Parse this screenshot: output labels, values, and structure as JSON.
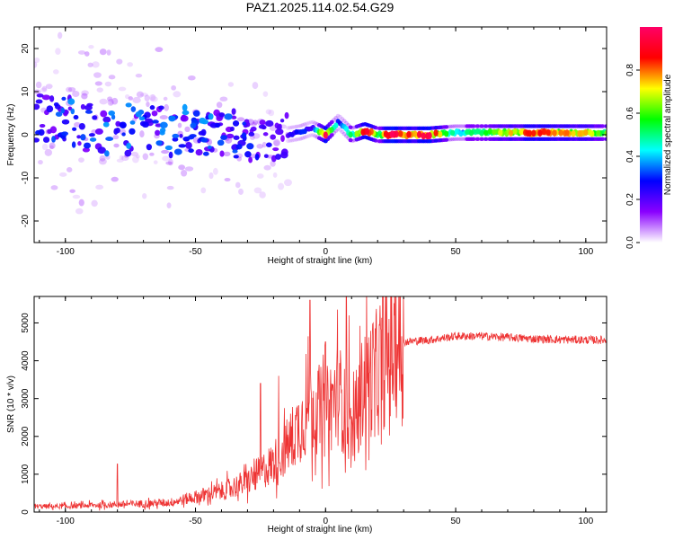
{
  "figure": {
    "title": "PAZ1.2025.114.02.54.G29"
  },
  "chart_data": [
    {
      "type": "heatmap",
      "xlabel": "Height of straight line (km)",
      "ylabel": "Frequency (Hz)",
      "xlim": [
        -112,
        108
      ],
      "ylim": [
        -25,
        25
      ],
      "xticks": [
        -100,
        -50,
        0,
        50,
        100
      ],
      "yticks": [
        -20,
        -10,
        0,
        10,
        20
      ],
      "colorbar": {
        "label": "Normalized spectral amplitude",
        "range": [
          0,
          1
        ],
        "ticks": [
          0.0,
          0.2,
          0.4,
          0.6,
          0.8
        ],
        "colors": [
          "#ffffff",
          "#8a00ff",
          "#0000ff",
          "#00ffff",
          "#00ff00",
          "#ffff00",
          "#ff0000",
          "#ff0066"
        ]
      },
      "ridge": [
        {
          "x": -110,
          "f": 4,
          "amp": 0.25
        },
        {
          "x": -100,
          "f": 3,
          "amp": 0.3
        },
        {
          "x": -90,
          "f": 2,
          "amp": 0.3
        },
        {
          "x": -80,
          "f": 1,
          "amp": 0.3
        },
        {
          "x": -70,
          "f": 2,
          "amp": 0.3
        },
        {
          "x": -60,
          "f": 1,
          "amp": 0.3
        },
        {
          "x": -50,
          "f": 0,
          "amp": 0.3
        },
        {
          "x": -40,
          "f": 0,
          "amp": 0.3
        },
        {
          "x": -30,
          "f": -1,
          "amp": 0.25
        },
        {
          "x": -20,
          "f": -1,
          "amp": 0.2
        },
        {
          "x": -15,
          "f": 0,
          "amp": 0.2
        },
        {
          "x": -10,
          "f": 0.5,
          "amp": 0.3
        },
        {
          "x": -5,
          "f": 1.5,
          "amp": 0.25
        },
        {
          "x": 0,
          "f": 0,
          "amp": 0.9
        },
        {
          "x": 5,
          "f": 3,
          "amp": 0.3
        },
        {
          "x": 10,
          "f": 0,
          "amp": 0.5
        },
        {
          "x": 15,
          "f": 1,
          "amp": 0.9
        },
        {
          "x": 20,
          "f": 0,
          "amp": 0.6
        },
        {
          "x": 25,
          "f": 0,
          "amp": 0.95
        },
        {
          "x": 30,
          "f": 0,
          "amp": 0.8
        },
        {
          "x": 40,
          "f": 0,
          "amp": 0.9
        },
        {
          "x": 50,
          "f": 0.5,
          "amp": 0.4
        },
        {
          "x": 60,
          "f": 0.5,
          "amp": 0.6
        },
        {
          "x": 70,
          "f": 0.5,
          "amp": 0.7
        },
        {
          "x": 80,
          "f": 0.5,
          "amp": 0.8
        },
        {
          "x": 90,
          "f": 0.5,
          "amp": 0.75
        },
        {
          "x": 100,
          "f": 0.5,
          "amp": 0.7
        },
        {
          "x": 108,
          "f": 0.5,
          "amp": 0.6
        }
      ]
    },
    {
      "type": "line",
      "xlabel": "Height of straight line (km)",
      "ylabel": "SNR (10 * v/v)",
      "xlim": [
        -112,
        108
      ],
      "ylim": [
        0,
        5700
      ],
      "xticks": [
        -100,
        -50,
        0,
        50,
        100
      ],
      "yticks": [
        0,
        1000,
        2000,
        3000,
        4000,
        5000
      ],
      "color": "#ee3333",
      "trend": {
        "x": [
          -112,
          -100,
          -80,
          -60,
          -50,
          -40,
          -30,
          -20,
          -15,
          -10,
          -5,
          0,
          5,
          10,
          15,
          20,
          25,
          30,
          40,
          50,
          60,
          70,
          80,
          90,
          100,
          108
        ],
        "y": [
          150,
          150,
          200,
          250,
          400,
          550,
          800,
          1300,
          1700,
          2300,
          2800,
          2600,
          3200,
          2000,
          3500,
          3600,
          4300,
          4500,
          4550,
          4650,
          4650,
          4620,
          4580,
          4560,
          4550,
          4550
        ]
      },
      "spikes": [
        {
          "x": -80,
          "y": 1270
        },
        {
          "x": -6,
          "y": 5600
        },
        {
          "x": 8,
          "y": 5700
        },
        {
          "x": 9,
          "y": 5200
        },
        {
          "x": 0,
          "y": 4500
        },
        {
          "x": -18,
          "y": 3600
        },
        {
          "x": -25,
          "y": 3400
        }
      ]
    }
  ]
}
